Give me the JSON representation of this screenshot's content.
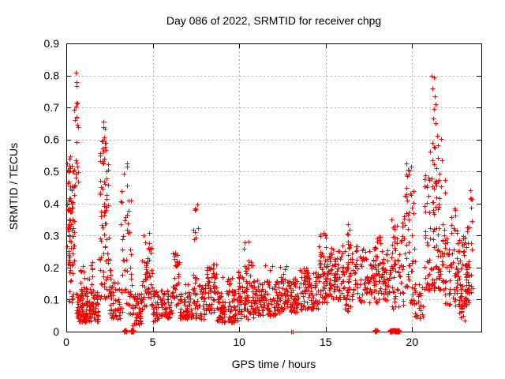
{
  "chart_data": {
    "type": "scatter",
    "title": "Day 086 of 2022, SRMTID for receiver chpg",
    "xlabel": "GPS time / hours",
    "ylabel": "SRMTID / TECUs",
    "xlim": [
      0,
      24
    ],
    "ylim": [
      0,
      0.9
    ],
    "xticks": [
      {
        "v": 0,
        "label": "0"
      },
      {
        "v": 5,
        "label": "5"
      },
      {
        "v": 10,
        "label": "10"
      },
      {
        "v": 15,
        "label": "15"
      },
      {
        "v": 20,
        "label": "20"
      }
    ],
    "yticks": [
      {
        "v": 0.0,
        "label": "0"
      },
      {
        "v": 0.1,
        "label": "0.1"
      },
      {
        "v": 0.2,
        "label": "0.2"
      },
      {
        "v": 0.3,
        "label": "0.3"
      },
      {
        "v": 0.4,
        "label": "0.4"
      },
      {
        "v": 0.5,
        "label": "0.5"
      },
      {
        "v": 0.6,
        "label": "0.6"
      },
      {
        "v": 0.7,
        "label": "0.7"
      },
      {
        "v": 0.8,
        "label": "0.8"
      },
      {
        "v": 0.9,
        "label": "0.9"
      }
    ],
    "grid": true,
    "legend": "none",
    "marker": "plus",
    "marker_size": 7,
    "marker_color": "#ff0000",
    "grid_color": "#b0b0b0",
    "frame_color": "#000000",
    "seed": 2022086,
    "series_name": "SRMTID",
    "density_segments_comment": "Each segment: [hour_start, hour_end, value_min, value_max, n_points, low_bias_exponent] summarizing the dense scatter read off the plot.",
    "density_segments": [
      [
        0.05,
        0.5,
        0.2,
        0.53,
        55,
        1.0
      ],
      [
        0.05,
        0.4,
        0.28,
        0.46,
        22,
        1.0
      ],
      [
        0.1,
        0.45,
        0.09,
        0.2,
        13,
        1.0
      ],
      [
        0.05,
        0.3,
        0.5,
        0.57,
        4,
        1.0
      ],
      [
        0.45,
        0.68,
        0.55,
        0.81,
        13,
        1.0
      ],
      [
        0.5,
        0.75,
        0.42,
        0.55,
        7,
        1.0
      ],
      [
        0.55,
        1.85,
        0.03,
        0.13,
        150,
        1.5
      ],
      [
        0.8,
        1.6,
        0.13,
        0.22,
        20,
        1.3
      ],
      [
        1.95,
        2.45,
        0.24,
        0.58,
        48,
        1.1
      ],
      [
        2.0,
        2.3,
        0.58,
        0.68,
        9,
        1.0
      ],
      [
        1.85,
        2.6,
        0.1,
        0.24,
        30,
        1.2
      ],
      [
        2.5,
        3.15,
        0.04,
        0.16,
        45,
        1.3
      ],
      [
        3.15,
        3.78,
        0.05,
        0.45,
        48,
        1.4
      ],
      [
        3.3,
        3.65,
        0.45,
        0.53,
        4,
        1.0
      ],
      [
        3.8,
        4.4,
        0.02,
        0.12,
        55,
        1.3
      ],
      [
        4.35,
        5.0,
        0.08,
        0.26,
        48,
        1.3
      ],
      [
        4.45,
        4.95,
        0.26,
        0.31,
        6,
        1.0
      ],
      [
        5.0,
        5.6,
        0.03,
        0.13,
        50,
        1.2
      ],
      [
        5.6,
        6.1,
        0.04,
        0.13,
        40,
        1.2
      ],
      [
        6.1,
        6.55,
        0.08,
        0.25,
        35,
        1.2
      ],
      [
        6.55,
        8.1,
        0.04,
        0.15,
        110,
        1.4
      ],
      [
        7.3,
        7.65,
        0.15,
        0.4,
        15,
        1.2
      ],
      [
        8.1,
        8.7,
        0.06,
        0.21,
        55,
        1.2
      ],
      [
        8.7,
        9.9,
        0.03,
        0.13,
        100,
        1.3
      ],
      [
        9.3,
        9.6,
        0.12,
        0.17,
        8,
        1.0
      ],
      [
        9.9,
        10.85,
        0.04,
        0.19,
        80,
        1.3
      ],
      [
        10.25,
        10.8,
        0.19,
        0.285,
        11,
        1.0
      ],
      [
        10.85,
        12.3,
        0.05,
        0.16,
        115,
        1.3
      ],
      [
        11.4,
        12.85,
        0.15,
        0.215,
        12,
        1.0
      ],
      [
        12.3,
        13.45,
        0.06,
        0.17,
        90,
        1.3
      ],
      [
        13.45,
        14.6,
        0.07,
        0.2,
        95,
        1.2
      ],
      [
        14.6,
        15.35,
        0.09,
        0.27,
        75,
        1.1
      ],
      [
        14.65,
        15.15,
        0.27,
        0.31,
        6,
        1.0
      ],
      [
        15.35,
        16.85,
        0.1,
        0.27,
        115,
        1.2
      ],
      [
        16.2,
        16.55,
        0.27,
        0.335,
        7,
        1.0
      ],
      [
        16.0,
        16.45,
        0.06,
        0.1,
        8,
        1.0
      ],
      [
        16.85,
        18.65,
        0.09,
        0.26,
        130,
        1.2
      ],
      [
        17.6,
        18.15,
        0.26,
        0.31,
        8,
        1.0
      ],
      [
        18.65,
        19.35,
        0.07,
        0.3,
        50,
        1.1
      ],
      [
        18.8,
        19.2,
        0.3,
        0.36,
        5,
        1.0
      ],
      [
        19.4,
        20.15,
        0.08,
        0.45,
        62,
        1.3
      ],
      [
        19.55,
        20.05,
        0.45,
        0.53,
        7,
        1.0
      ],
      [
        20.15,
        20.65,
        0.04,
        0.16,
        26,
        1.1
      ],
      [
        20.7,
        21.9,
        0.13,
        0.5,
        120,
        1.5
      ],
      [
        21.0,
        21.75,
        0.5,
        0.62,
        10,
        1.0
      ],
      [
        21.9,
        23.3,
        0.08,
        0.3,
        115,
        1.2
      ],
      [
        22.25,
        22.6,
        0.3,
        0.425,
        10,
        1.0
      ],
      [
        22.7,
        23.05,
        0.03,
        0.09,
        12,
        1.0
      ],
      [
        23.1,
        23.5,
        0.12,
        0.36,
        22,
        1.0
      ],
      [
        23.2,
        23.45,
        0.36,
        0.45,
        5,
        1.0
      ]
    ],
    "outlier_points": [
      [
        21.12,
        0.8
      ],
      [
        21.24,
        0.795
      ],
      [
        21.18,
        0.76
      ],
      [
        21.3,
        0.735
      ],
      [
        21.34,
        0.71
      ],
      [
        21.27,
        0.695
      ],
      [
        21.21,
        0.665
      ],
      [
        21.36,
        0.65
      ],
      [
        21.16,
        0.59
      ],
      [
        21.31,
        0.575
      ],
      [
        12.75,
        0.205
      ],
      [
        9.05,
        0.17
      ]
    ],
    "zero_value_points": [
      [
        3.4,
        0.0
      ],
      [
        3.45,
        0.0
      ],
      [
        13.02,
        0.0
      ],
      [
        13.08,
        0.0
      ]
    ],
    "zero_value_runs_comment": "Hour ranges where a solid red bar of overlapping zero-value markers sits on the x-axis.",
    "zero_value_runs": [
      [
        3.33,
        3.47
      ],
      [
        3.74,
        3.9
      ],
      [
        17.83,
        17.97
      ],
      [
        18.7,
        19.27
      ]
    ]
  }
}
